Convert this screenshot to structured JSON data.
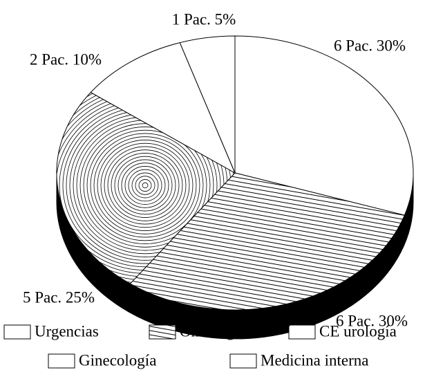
{
  "chart_data": {
    "type": "pie",
    "categories": [
      "Urgencias",
      "Oncología",
      "CE urología",
      "Ginecología",
      "Medicina interna"
    ],
    "values": [
      30,
      30,
      25,
      10,
      5
    ],
    "value_labels": [
      "6 Pac. 30%",
      "6 Pac. 30%",
      "5 Pac. 25%",
      "2 Pac. 10%",
      "1 Pac. 5%"
    ],
    "colors": [
      "#ffffff",
      "#ffffff",
      "#ffffff",
      "#ffffff",
      "#ffffff"
    ],
    "patterns": [
      "none",
      "lines",
      "spiral",
      "none",
      "none"
    ],
    "legend": "bottom"
  }
}
